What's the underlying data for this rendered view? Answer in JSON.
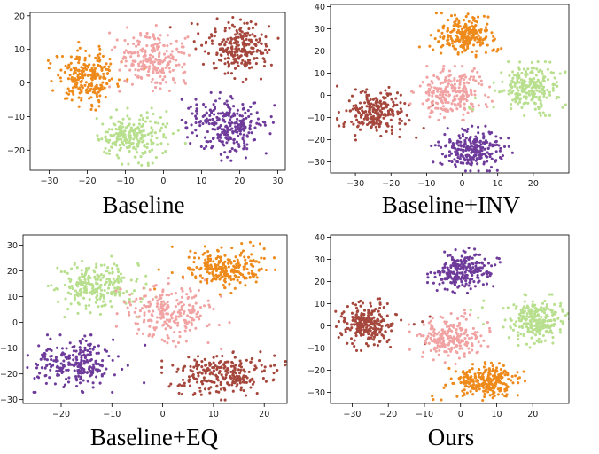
{
  "chart_data": [
    {
      "type": "scatter",
      "title": "Baseline",
      "xlabel": "",
      "ylabel": "",
      "xlim": [
        -35,
        32
      ],
      "ylim": [
        -26,
        21
      ],
      "xticks": [
        -30,
        -20,
        -10,
        0,
        10,
        20,
        30
      ],
      "yticks": [
        -20,
        -10,
        0,
        10,
        20
      ],
      "grid": false,
      "clusters": [
        {
          "color": "#ee8a1b",
          "center": [
            -20,
            2
          ],
          "spread": [
            5.2,
            5.0
          ],
          "count": 230
        },
        {
          "color": "#f1a3a3",
          "center": [
            -3,
            7
          ],
          "spread": [
            5.5,
            5.0
          ],
          "count": 210
        },
        {
          "color": "#a5473c",
          "center": [
            20,
            10
          ],
          "spread": [
            5.0,
            4.8
          ],
          "count": 240
        },
        {
          "color": "#b7df8d",
          "center": [
            -8,
            -16
          ],
          "spread": [
            5.2,
            4.2
          ],
          "count": 220
        },
        {
          "color": "#6e3b9b",
          "center": [
            17,
            -13
          ],
          "spread": [
            6.0,
            5.0
          ],
          "count": 260
        }
      ]
    },
    {
      "type": "scatter",
      "title": "Baseline+INV",
      "xlabel": "",
      "ylabel": "",
      "xlim": [
        -37,
        30
      ],
      "ylim": [
        -35,
        41
      ],
      "xticks": [
        -30,
        -20,
        -10,
        0,
        10,
        20
      ],
      "yticks": [
        -30,
        -20,
        -10,
        0,
        10,
        20,
        30,
        40
      ],
      "grid": false,
      "clusters": [
        {
          "color": "#a5473c",
          "center": [
            -25,
            -8
          ],
          "spread": [
            5.0,
            6.0
          ],
          "count": 230
        },
        {
          "color": "#ee8a1b",
          "center": [
            1,
            27
          ],
          "spread": [
            5.0,
            5.0
          ],
          "count": 230
        },
        {
          "color": "#f1a3a3",
          "center": [
            -3,
            1
          ],
          "spread": [
            6.0,
            6.0
          ],
          "count": 220
        },
        {
          "color": "#b7df8d",
          "center": [
            19,
            3
          ],
          "spread": [
            5.0,
            6.0
          ],
          "count": 230
        },
        {
          "color": "#6e3b9b",
          "center": [
            3,
            -24
          ],
          "spread": [
            5.5,
            5.0
          ],
          "count": 240
        }
      ]
    },
    {
      "type": "scatter",
      "title": "Baseline+EQ",
      "xlabel": "",
      "ylabel": "",
      "xlim": [
        -27.5,
        24.5
      ],
      "ylim": [
        -31.5,
        34
      ],
      "xticks": [
        -20,
        -10,
        0,
        10,
        20
      ],
      "yticks": [
        -30,
        -20,
        -10,
        0,
        10,
        20,
        30
      ],
      "grid": false,
      "clusters": [
        {
          "color": "#b7df8d",
          "center": [
            -13,
            14
          ],
          "spread": [
            5.0,
            6.0
          ],
          "count": 230
        },
        {
          "color": "#ee8a1b",
          "center": [
            12,
            21
          ],
          "spread": [
            5.0,
            5.0
          ],
          "count": 230
        },
        {
          "color": "#f1a3a3",
          "center": [
            2,
            3
          ],
          "spread": [
            5.5,
            7.0
          ],
          "count": 220
        },
        {
          "color": "#6e3b9b",
          "center": [
            -17,
            -16
          ],
          "spread": [
            5.0,
            5.5
          ],
          "count": 240
        },
        {
          "color": "#a5473c",
          "center": [
            12,
            -20
          ],
          "spread": [
            6.0,
            5.0
          ],
          "count": 240
        }
      ]
    },
    {
      "type": "scatter",
      "title": "Ours",
      "xlabel": "",
      "ylabel": "",
      "xlim": [
        -36,
        30
      ],
      "ylim": [
        -35,
        41
      ],
      "xticks": [
        -30,
        -20,
        -10,
        0,
        10,
        20
      ],
      "yticks": [
        -30,
        -20,
        -10,
        0,
        10,
        20,
        30,
        40
      ],
      "grid": false,
      "clusters": [
        {
          "color": "#a5473c",
          "center": [
            -26,
            1
          ],
          "spread": [
            5.0,
            6.0
          ],
          "count": 230
        },
        {
          "color": "#6e3b9b",
          "center": [
            1,
            25
          ],
          "spread": [
            5.0,
            5.0
          ],
          "count": 230
        },
        {
          "color": "#f1a3a3",
          "center": [
            -3,
            -5
          ],
          "spread": [
            5.5,
            6.0
          ],
          "count": 210
        },
        {
          "color": "#b7df8d",
          "center": [
            21,
            2
          ],
          "spread": [
            4.5,
            6.0
          ],
          "count": 230
        },
        {
          "color": "#ee8a1b",
          "center": [
            7,
            -25
          ],
          "spread": [
            5.5,
            4.5
          ],
          "count": 240
        }
      ]
    }
  ]
}
